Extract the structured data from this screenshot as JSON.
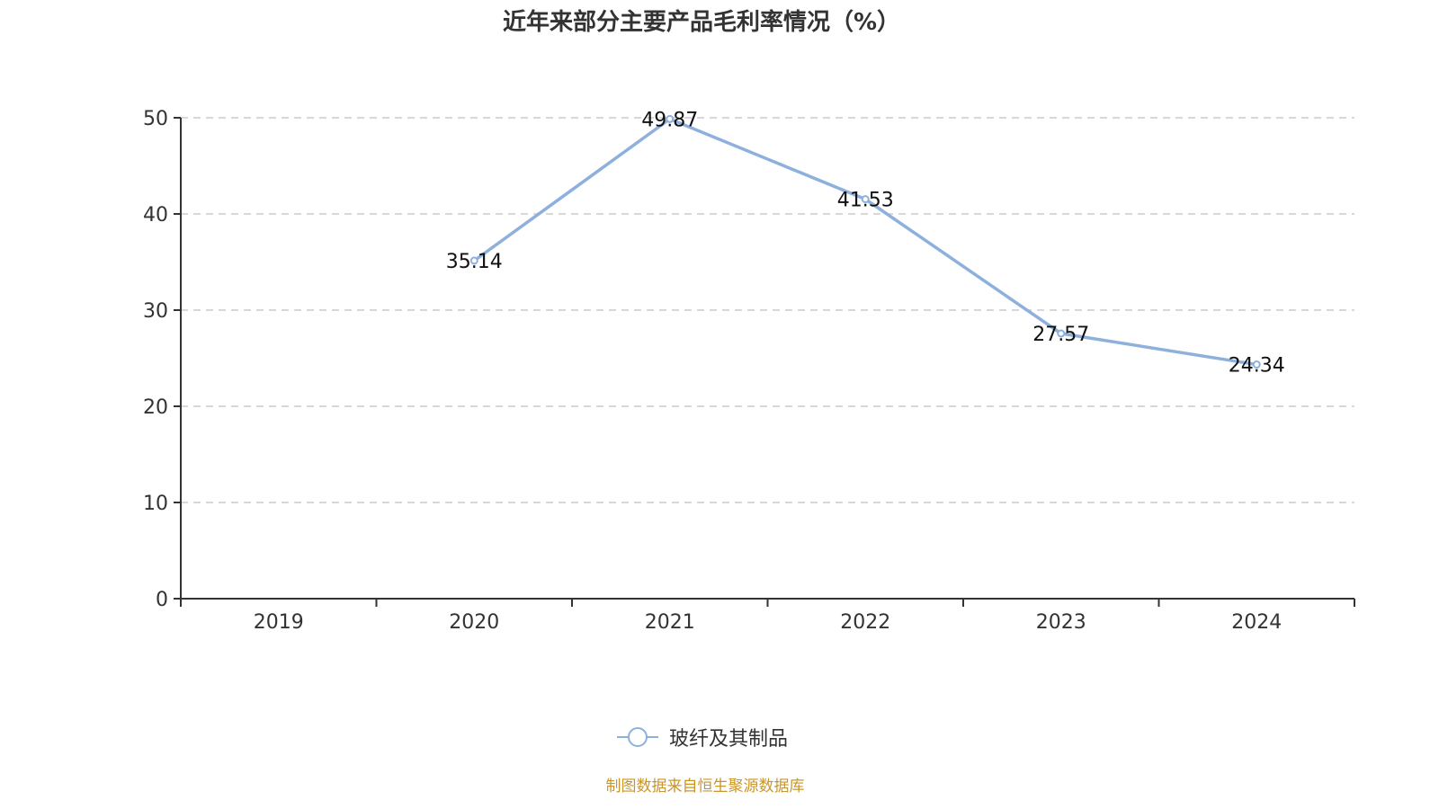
{
  "title": "近年来部分主要产品毛利率情况（%）",
  "legend": {
    "items": [
      {
        "label": "玻纤及其制品",
        "color": "#8eb0dc",
        "icon": "circle-line-marker-icon"
      }
    ]
  },
  "source": "制图数据来自恒生聚源数据库",
  "colors": {
    "series": "#8eb0dc",
    "axis": "#333333",
    "grid": "#cccccc",
    "source_text": "#c9962a"
  },
  "chart_data": {
    "type": "line",
    "title": "近年来部分主要产品毛利率情况（%）",
    "xlabel": "",
    "ylabel": "",
    "categories": [
      "2019",
      "2020",
      "2021",
      "2022",
      "2023",
      "2024"
    ],
    "series": [
      {
        "name": "玻纤及其制品",
        "values": [
          null,
          35.14,
          49.87,
          41.53,
          27.57,
          24.34
        ]
      }
    ],
    "data_labels": [
      "",
      "35.14",
      "49.87",
      "41.53",
      "27.57",
      "24.34"
    ],
    "yticks": [
      0,
      10,
      20,
      30,
      40,
      50
    ],
    "ylim": [
      0,
      50
    ],
    "grid": {
      "y": true,
      "style": "dashed"
    },
    "legend_position": "bottom"
  }
}
